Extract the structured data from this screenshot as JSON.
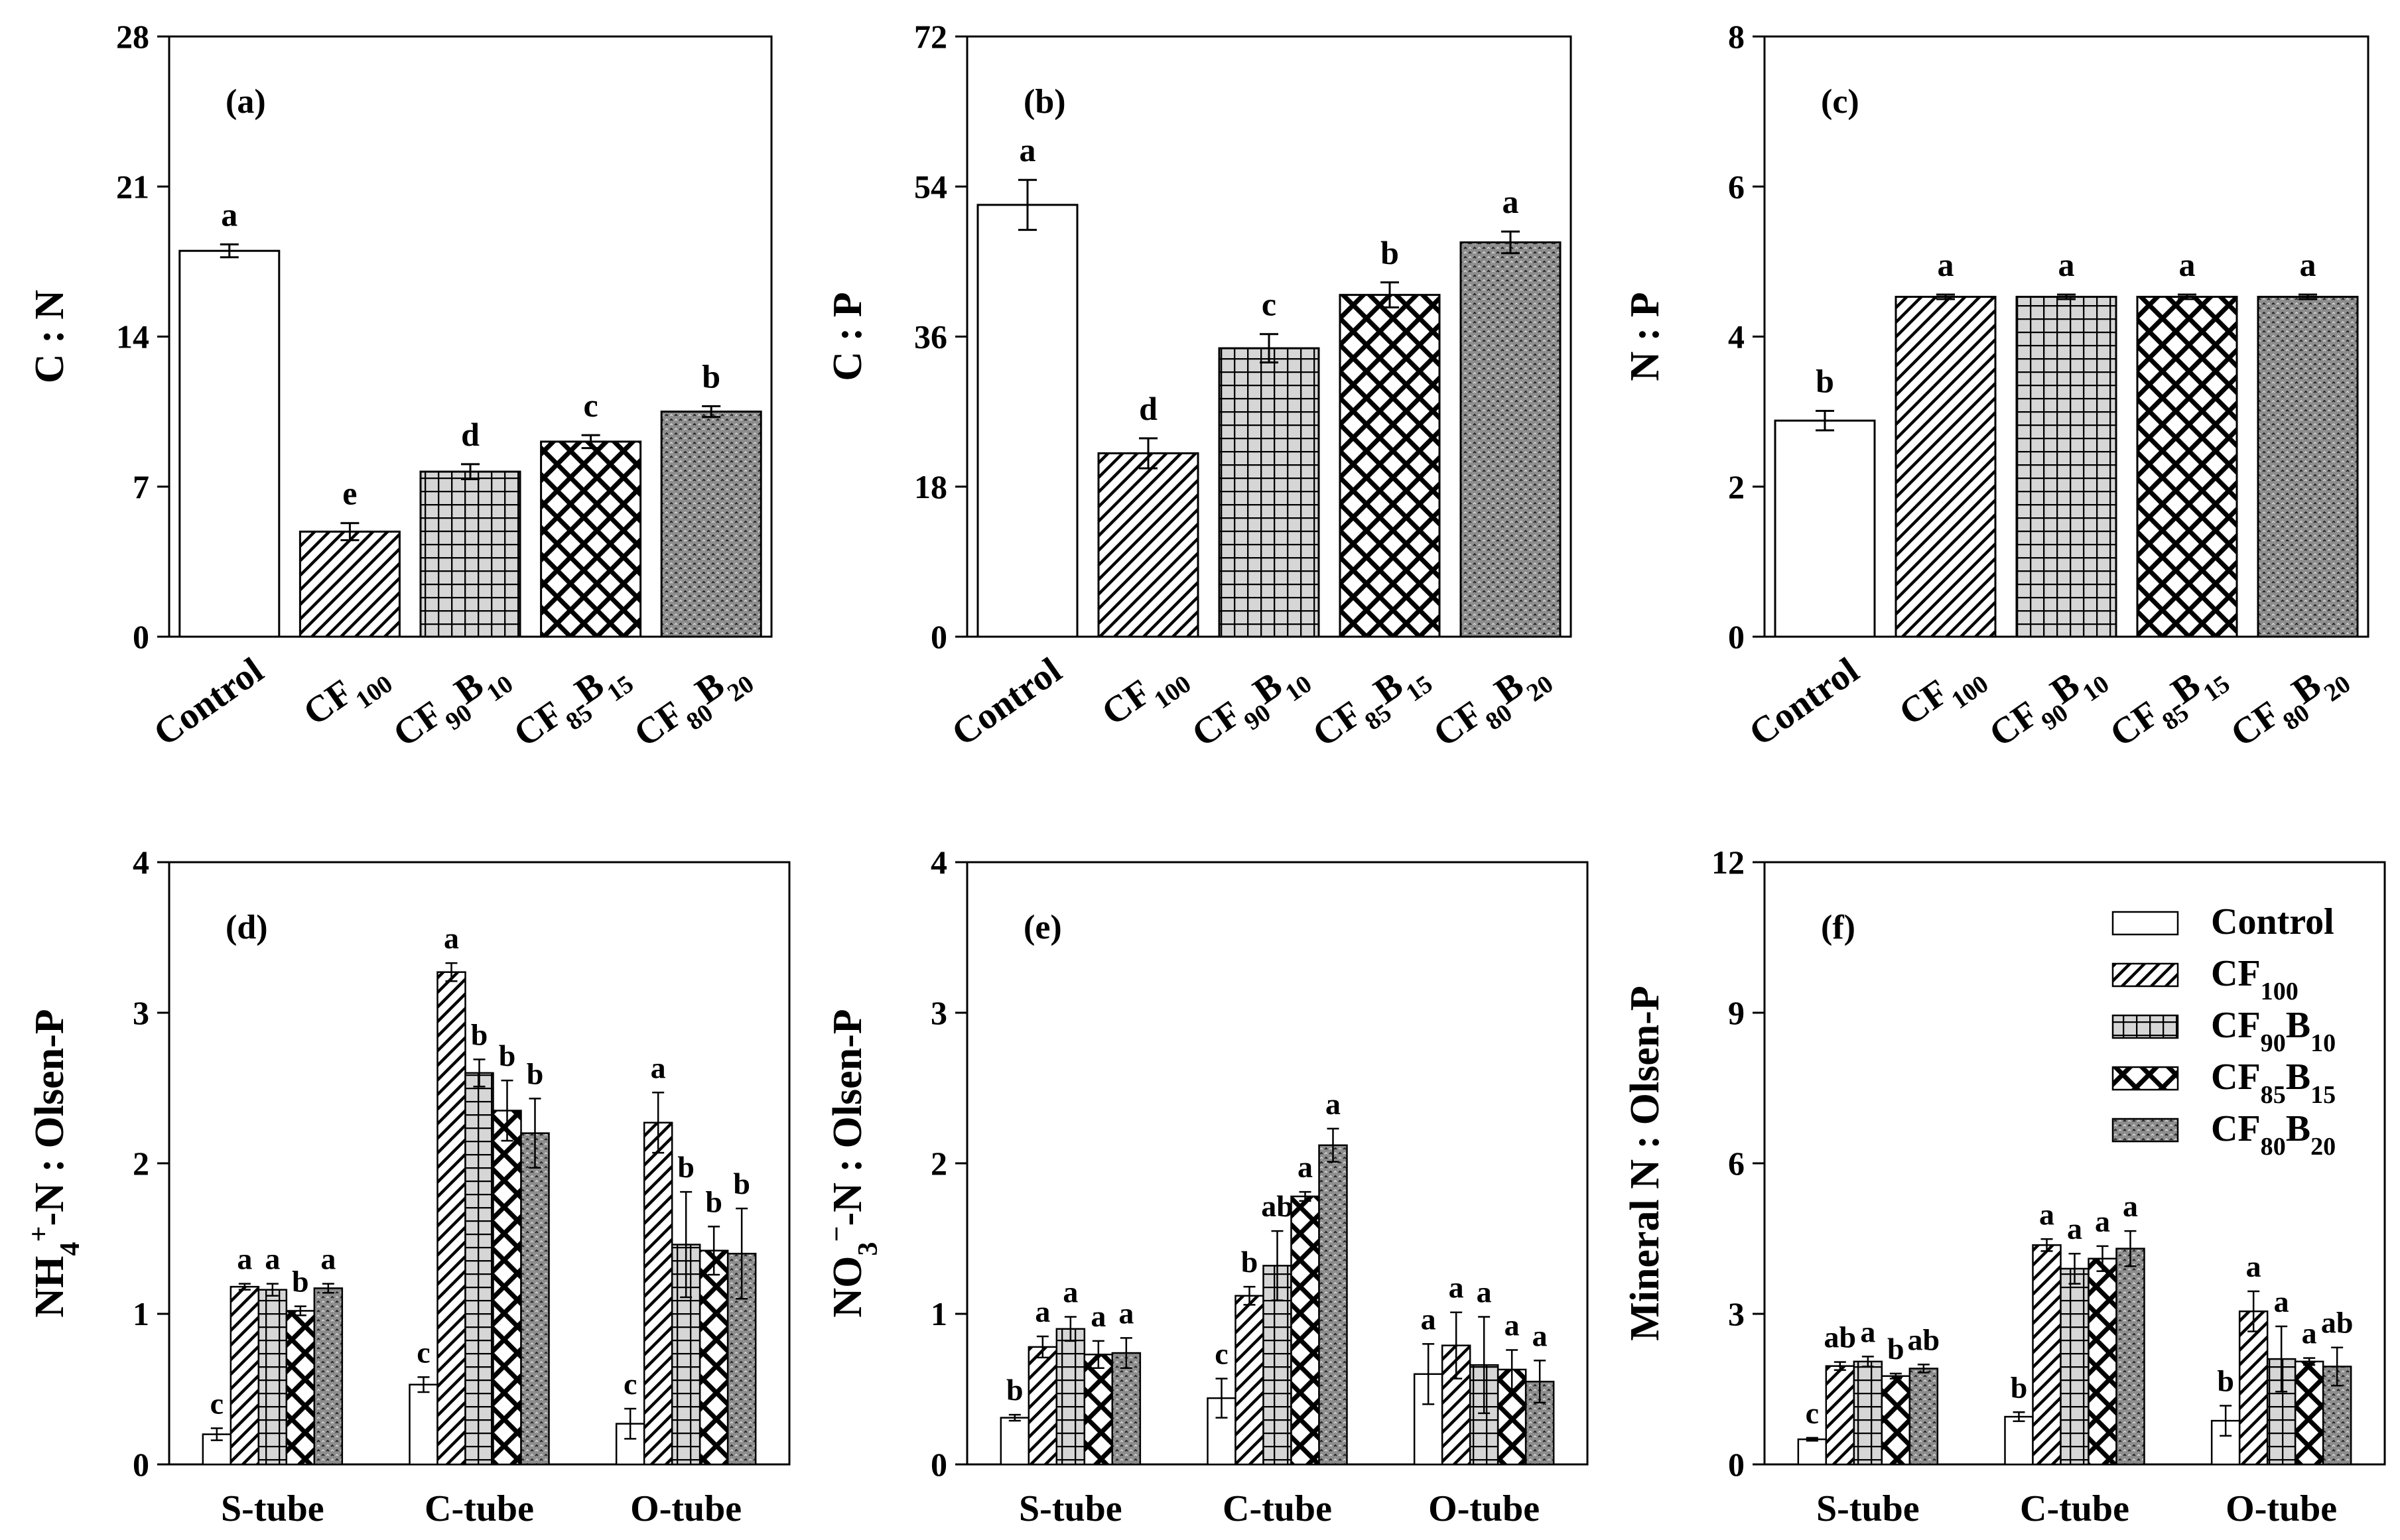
{
  "chart_data": [
    {
      "type": "bar",
      "panel_label": "(a)",
      "ylabel": "C : N",
      "ylim": [
        0,
        28
      ],
      "yticks": [
        "0",
        "7",
        "14",
        "21",
        "28"
      ],
      "x_tick_labels": [
        {
          "base": "Control",
          "parts": [
            [
              "Control",
              ""
            ]
          ]
        },
        {
          "base": "CF100",
          "parts": [
            [
              "CF",
              ""
            ],
            [
              "100",
              "sub"
            ]
          ]
        },
        {
          "base": "CF90B10",
          "parts": [
            [
              "CF",
              ""
            ],
            [
              "90",
              "sub"
            ],
            [
              "B",
              ""
            ],
            [
              "10",
              "sub"
            ]
          ]
        },
        {
          "base": "CF85B15",
          "parts": [
            [
              "CF",
              ""
            ],
            [
              "85",
              "sub"
            ],
            [
              "B",
              ""
            ],
            [
              "15",
              "sub"
            ]
          ]
        },
        {
          "base": "CF80B20",
          "parts": [
            [
              "CF",
              ""
            ],
            [
              "80",
              "sub"
            ],
            [
              "B",
              ""
            ],
            [
              "20",
              "sub"
            ]
          ]
        }
      ],
      "categories": [
        "Control",
        "CF100",
        "CF90B10",
        "CF85B15",
        "CF80B20"
      ],
      "values": [
        18.0,
        4.9,
        7.7,
        9.1,
        10.5
      ],
      "errors": [
        0.3,
        0.4,
        0.35,
        0.3,
        0.25
      ],
      "letters": [
        "a",
        "e",
        "d",
        "c",
        "b"
      ]
    },
    {
      "type": "bar",
      "panel_label": "(b)",
      "ylabel": "C : P",
      "ylim": [
        0,
        72
      ],
      "yticks": [
        "0",
        "18",
        "36",
        "54",
        "72"
      ],
      "x_tick_labels": [
        {
          "base": "Control",
          "parts": [
            [
              "Control",
              ""
            ]
          ]
        },
        {
          "base": "CF100",
          "parts": [
            [
              "CF",
              ""
            ],
            [
              "100",
              "sub"
            ]
          ]
        },
        {
          "base": "CF90B10",
          "parts": [
            [
              "CF",
              ""
            ],
            [
              "90",
              "sub"
            ],
            [
              "B",
              ""
            ],
            [
              "10",
              "sub"
            ]
          ]
        },
        {
          "base": "CF85B15",
          "parts": [
            [
              "CF",
              ""
            ],
            [
              "85",
              "sub"
            ],
            [
              "B",
              ""
            ],
            [
              "15",
              "sub"
            ]
          ]
        },
        {
          "base": "CF80B20",
          "parts": [
            [
              "CF",
              ""
            ],
            [
              "80",
              "sub"
            ],
            [
              "B",
              ""
            ],
            [
              "20",
              "sub"
            ]
          ]
        }
      ],
      "categories": [
        "Control",
        "CF100",
        "CF90B10",
        "CF85B15",
        "CF80B20"
      ],
      "values": [
        51.8,
        22.0,
        34.6,
        41.0,
        47.3
      ],
      "errors": [
        3.0,
        1.8,
        1.7,
        1.5,
        1.3
      ],
      "letters": [
        "a",
        "d",
        "c",
        "b",
        "a"
      ]
    },
    {
      "type": "bar",
      "panel_label": "(c)",
      "ylabel": "N : P",
      "ylim": [
        0,
        8
      ],
      "yticks": [
        "0",
        "2",
        "4",
        "6",
        "8"
      ],
      "x_tick_labels": [
        {
          "base": "Control",
          "parts": [
            [
              "Control",
              ""
            ]
          ]
        },
        {
          "base": "CF100",
          "parts": [
            [
              "CF",
              ""
            ],
            [
              "100",
              "sub"
            ]
          ]
        },
        {
          "base": "CF90B10",
          "parts": [
            [
              "CF",
              ""
            ],
            [
              "90",
              "sub"
            ],
            [
              "B",
              ""
            ],
            [
              "10",
              "sub"
            ]
          ]
        },
        {
          "base": "CF85B15",
          "parts": [
            [
              "CF",
              ""
            ],
            [
              "85",
              "sub"
            ],
            [
              "B",
              ""
            ],
            [
              "15",
              "sub"
            ]
          ]
        },
        {
          "base": "CF80B20",
          "parts": [
            [
              "CF",
              ""
            ],
            [
              "80",
              "sub"
            ],
            [
              "B",
              ""
            ],
            [
              "20",
              "sub"
            ]
          ]
        }
      ],
      "categories": [
        "Control",
        "CF100",
        "CF90B10",
        "CF85B15",
        "CF80B20"
      ],
      "values": [
        2.88,
        4.53,
        4.53,
        4.53,
        4.53
      ],
      "errors": [
        0.13,
        0.03,
        0.03,
        0.03,
        0.03
      ],
      "letters": [
        "b",
        "a",
        "a",
        "a",
        "a"
      ]
    },
    {
      "type": "bar",
      "panel_label": "(d)",
      "ylabel": {
        "parts": [
          [
            "NH",
            ""
          ],
          [
            "4",
            "sub"
          ],
          [
            "+",
            "sup"
          ],
          [
            "-N : Olsen-P",
            ""
          ]
        ]
      },
      "ylim": [
        0,
        4
      ],
      "yticks": [
        "0",
        "1",
        "2",
        "3",
        "4"
      ],
      "categories": [
        "S-tube",
        "C-tube",
        "O-tube"
      ],
      "series": [
        {
          "name": "Control",
          "values": [
            0.2,
            0.53,
            0.27
          ],
          "errors": [
            0.04,
            0.05,
            0.1
          ],
          "letters": [
            "c",
            "c",
            "c"
          ]
        },
        {
          "name": "CF100",
          "values": [
            1.18,
            3.27,
            2.27
          ],
          "errors": [
            0.02,
            0.06,
            0.2
          ],
          "letters": [
            "a",
            "a",
            "a"
          ]
        },
        {
          "name": "CF90B10",
          "values": [
            1.16,
            2.6,
            1.46
          ],
          "errors": [
            0.04,
            0.09,
            0.35
          ],
          "letters": [
            "a",
            "b",
            "b"
          ]
        },
        {
          "name": "CF85B15",
          "values": [
            1.02,
            2.35,
            1.42
          ],
          "errors": [
            0.03,
            0.2,
            0.16
          ],
          "letters": [
            "b",
            "b",
            "b"
          ]
        },
        {
          "name": "CF80B20",
          "values": [
            1.17,
            2.2,
            1.4
          ],
          "errors": [
            0.03,
            0.23,
            0.3
          ],
          "letters": [
            "a",
            "b",
            "b"
          ]
        }
      ]
    },
    {
      "type": "bar",
      "panel_label": "(e)",
      "ylabel": {
        "parts": [
          [
            "NO",
            ""
          ],
          [
            "3",
            "sub"
          ],
          [
            "−",
            "sup"
          ],
          [
            "-N : Olsen-P",
            ""
          ]
        ]
      },
      "ylim": [
        0,
        4
      ],
      "yticks": [
        "0",
        "1",
        "2",
        "3",
        "4"
      ],
      "categories": [
        "S-tube",
        "C-tube",
        "O-tube"
      ],
      "series": [
        {
          "name": "Control",
          "values": [
            0.31,
            0.44,
            0.6
          ],
          "errors": [
            0.02,
            0.13,
            0.2
          ],
          "letters": [
            "b",
            "c",
            "a"
          ]
        },
        {
          "name": "CF100",
          "values": [
            0.78,
            1.12,
            0.79
          ],
          "errors": [
            0.07,
            0.06,
            0.22
          ],
          "letters": [
            "a",
            "b",
            "a"
          ]
        },
        {
          "name": "CF90B10",
          "values": [
            0.9,
            1.32,
            0.66
          ],
          "errors": [
            0.08,
            0.23,
            0.32
          ],
          "letters": [
            "a",
            "ab",
            "a"
          ]
        },
        {
          "name": "CF85B15",
          "values": [
            0.73,
            1.78,
            0.63
          ],
          "errors": [
            0.09,
            0.03,
            0.13
          ],
          "letters": [
            "a",
            "a",
            "a"
          ]
        },
        {
          "name": "CF80B20",
          "values": [
            0.74,
            2.12,
            0.55
          ],
          "errors": [
            0.1,
            0.11,
            0.14
          ],
          "letters": [
            "a",
            "a",
            "a"
          ]
        }
      ]
    },
    {
      "type": "bar",
      "panel_label": "(f)",
      "ylabel": "Mineral N : Olsen-P",
      "ylim": [
        0,
        12
      ],
      "yticks": [
        "0",
        "3",
        "6",
        "9",
        "12"
      ],
      "categories": [
        "S-tube",
        "C-tube",
        "O-tube"
      ],
      "series": [
        {
          "name": "Control",
          "values": [
            0.5,
            0.95,
            0.87
          ],
          "errors": [
            0.03,
            0.09,
            0.3
          ],
          "letters": [
            "c",
            "b",
            "b"
          ]
        },
        {
          "name": "CF100",
          "values": [
            1.96,
            4.37,
            3.05
          ],
          "errors": [
            0.08,
            0.12,
            0.4
          ],
          "letters": [
            "ab",
            "a",
            "a"
          ]
        },
        {
          "name": "CF90B10",
          "values": [
            2.05,
            3.9,
            2.1
          ],
          "errors": [
            0.1,
            0.3,
            0.65
          ],
          "letters": [
            "a",
            "a",
            "a"
          ]
        },
        {
          "name": "CF85B15",
          "values": [
            1.76,
            4.1,
            2.05
          ],
          "errors": [
            0.05,
            0.25,
            0.07
          ],
          "letters": [
            "b",
            "a",
            "a"
          ]
        },
        {
          "name": "CF80B20",
          "values": [
            1.91,
            4.3,
            1.95
          ],
          "errors": [
            0.08,
            0.35,
            0.38
          ],
          "letters": [
            "ab",
            "a",
            "ab"
          ]
        }
      ]
    }
  ],
  "legend": {
    "placement": "top-right of panel (f)",
    "entries": [
      {
        "label": "Control",
        "parts": [
          [
            "Control",
            ""
          ]
        ]
      },
      {
        "label": "CF100",
        "parts": [
          [
            "CF",
            ""
          ],
          [
            "100",
            "sub"
          ]
        ]
      },
      {
        "label": "CF90B10",
        "parts": [
          [
            "CF",
            ""
          ],
          [
            "90",
            "sub"
          ],
          [
            "B",
            ""
          ],
          [
            "10",
            "sub"
          ]
        ]
      },
      {
        "label": "CF85B15",
        "parts": [
          [
            "CF",
            ""
          ],
          [
            "85",
            "sub"
          ],
          [
            "B",
            ""
          ],
          [
            "15",
            "sub"
          ]
        ]
      },
      {
        "label": "CF80B20",
        "parts": [
          [
            "CF",
            ""
          ],
          [
            "80",
            "sub"
          ],
          [
            "B",
            ""
          ],
          [
            "20",
            "sub"
          ]
        ]
      }
    ]
  }
}
